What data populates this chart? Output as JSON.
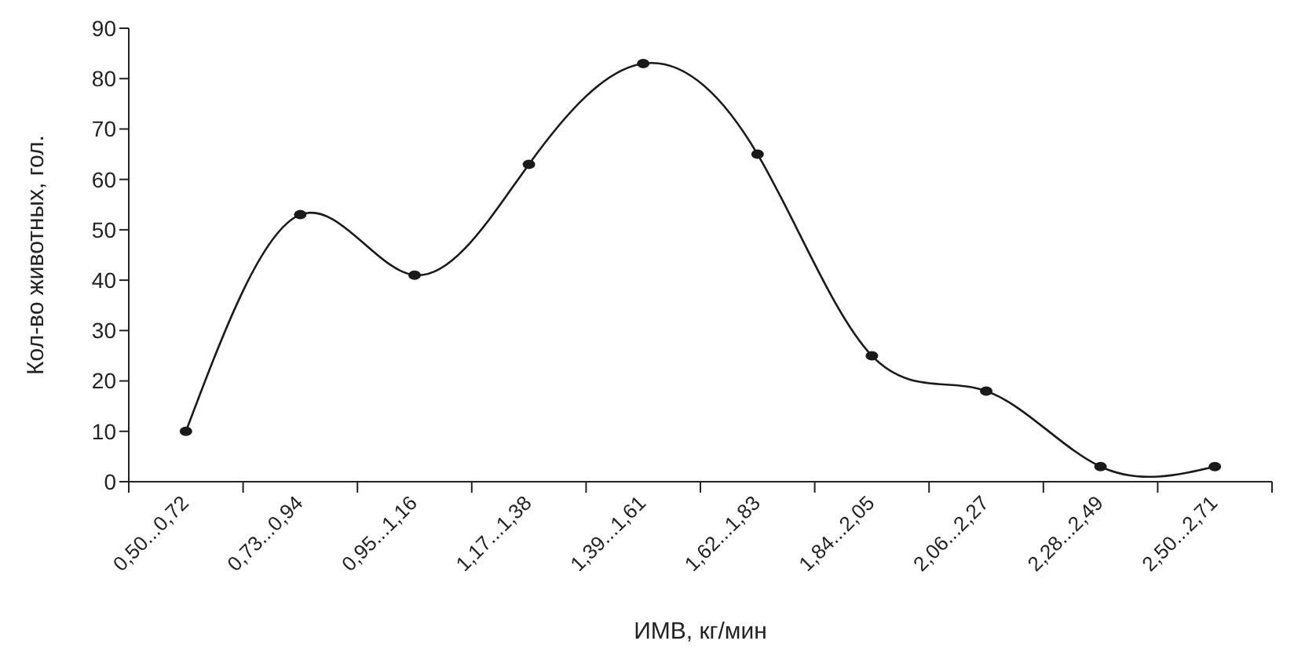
{
  "chart_data": {
    "type": "line",
    "xlabel": "ИМВ, кг/мин",
    "ylabel": "Кол-во животных, гол.",
    "categories": [
      "0,50...0,72",
      "0,73...0,94",
      "0,95...1,16",
      "1,17...1,38",
      "1,39...1,61",
      "1,62...1,83",
      "1,84...2,05",
      "2,06...2,27",
      "2,28...2,49",
      "2,50...2,71"
    ],
    "series": [
      {
        "color": "#1a1a1a",
        "values": [
          10,
          53,
          41,
          63,
          83,
          65,
          25,
          18,
          3,
          3
        ]
      }
    ],
    "ylim": [
      0,
      90
    ],
    "yticks": [
      0,
      10,
      20,
      30,
      40,
      50,
      60,
      70,
      80,
      90
    ],
    "marker": "circle",
    "line_style": "solid"
  }
}
